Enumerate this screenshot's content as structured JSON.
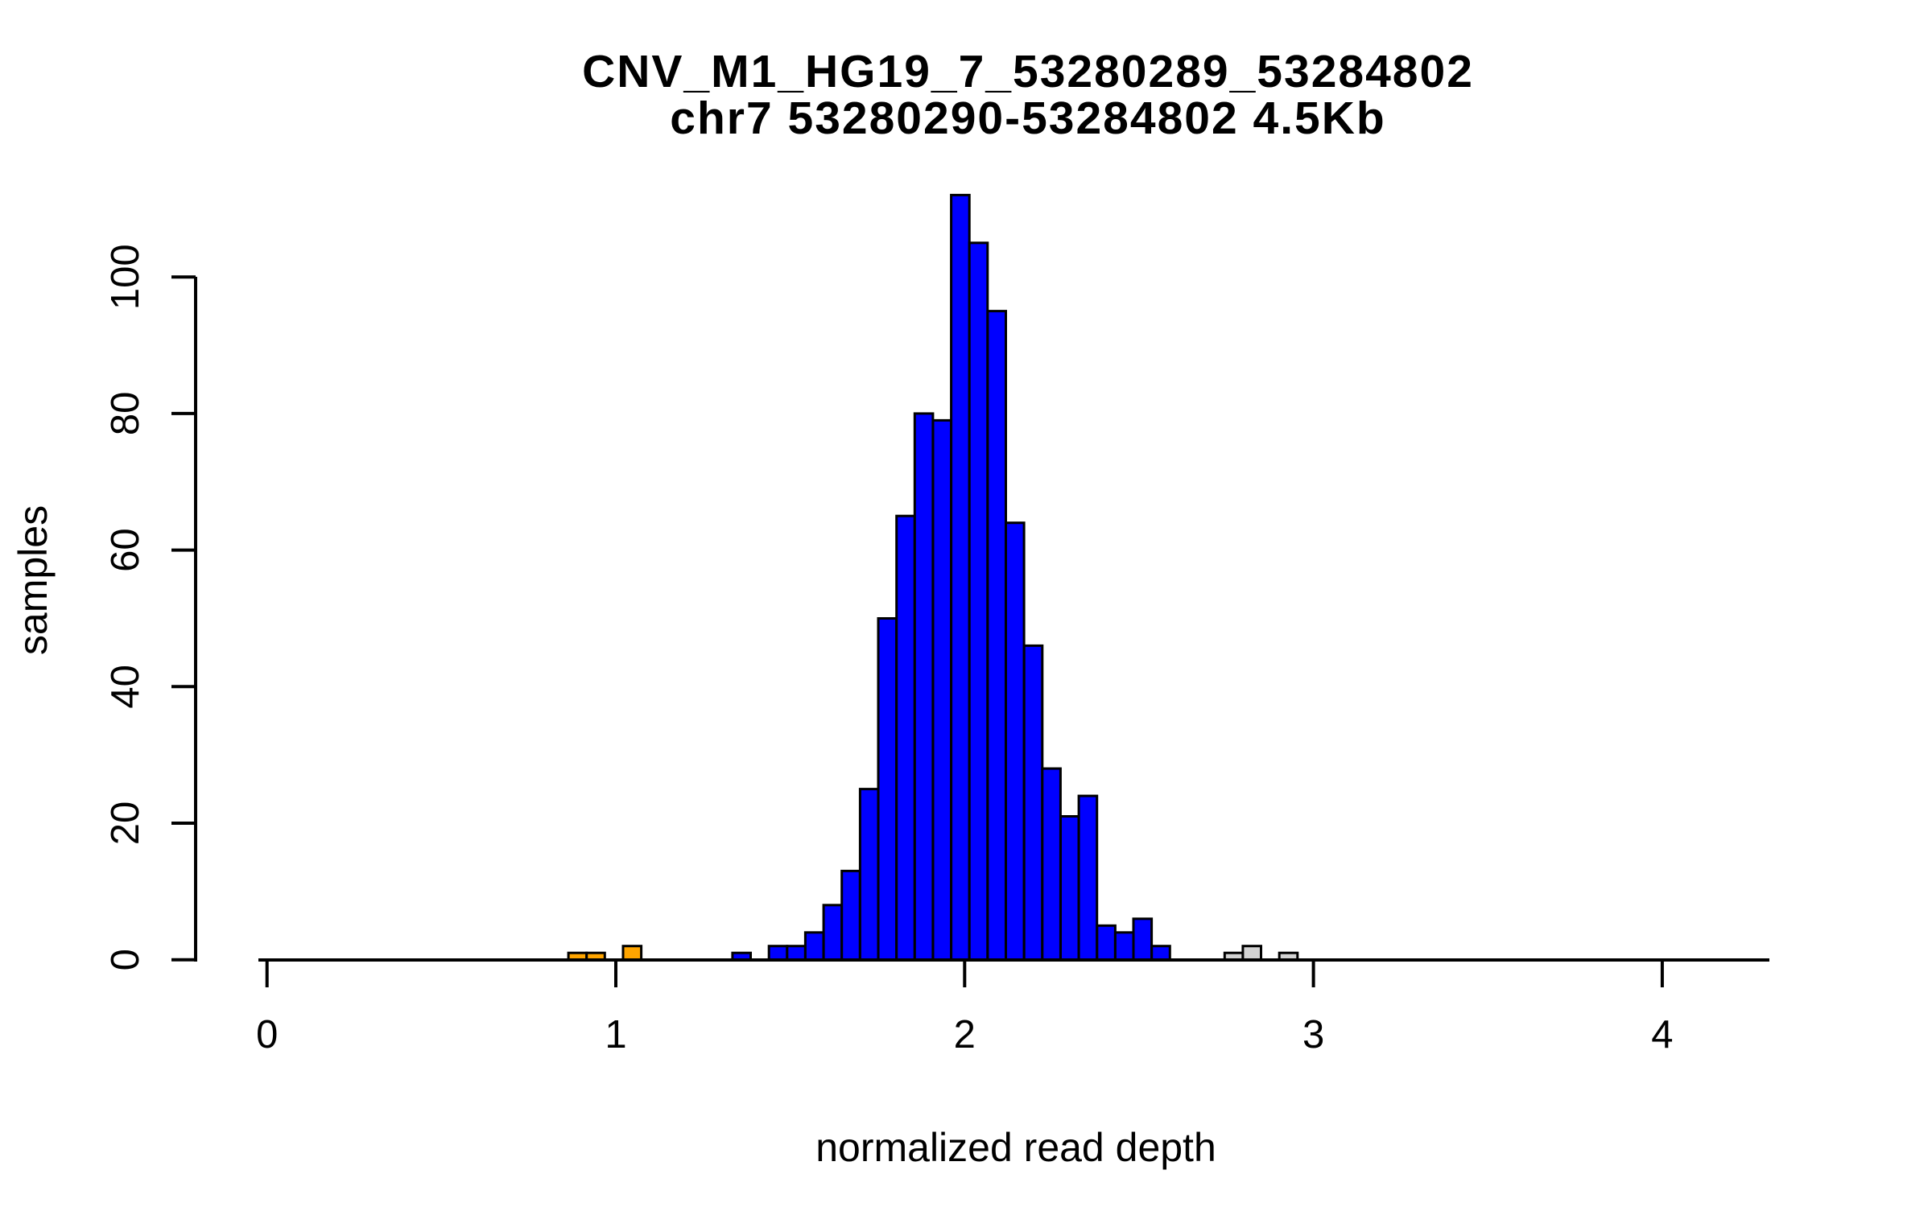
{
  "title": {
    "line1": "CNV_M1_HG19_7_53280289_53284802",
    "line2": "chr7 53280290-53284802 4.5Kb"
  },
  "axes": {
    "x": {
      "label": "normalized read depth",
      "tick_values": [
        0,
        1,
        2,
        3,
        4
      ],
      "tick_labels": [
        "0",
        "1",
        "2",
        "3",
        "4"
      ]
    },
    "y": {
      "label": "samples",
      "tick_values": [
        0,
        20,
        40,
        60,
        80,
        100
      ],
      "tick_labels": [
        "0",
        "20",
        "40",
        "60",
        "80",
        "100"
      ]
    }
  },
  "colors": {
    "blue": "#0000FF",
    "orange": "#FFA500",
    "gray": "#D3D3D3",
    "stroke": "#000000",
    "background": "#FFFFFF"
  },
  "chart_data": {
    "type": "bar",
    "subtype": "histogram",
    "title": "CNV_M1_HG19_7_53280289_53284802",
    "subtitle": "chr7 53280290-53284802 4.5Kb",
    "xlabel": "normalized read depth",
    "ylabel": "samples",
    "xlim": [
      -0.02,
      4.31
    ],
    "ylim": [
      0,
      112
    ],
    "grid": false,
    "legend": false,
    "bin_start": 0.864,
    "bin_width": 0.05226,
    "counts": [
      1,
      1,
      0,
      2,
      0,
      0,
      0,
      0,
      0,
      1,
      0,
      2,
      2,
      4,
      8,
      13,
      25,
      50,
      65,
      80,
      79,
      112,
      105,
      95,
      64,
      46,
      28,
      21,
      24,
      5,
      4,
      6,
      2,
      0,
      0,
      0,
      1,
      2,
      0,
      1
    ],
    "bar_colors": [
      "orange",
      "orange",
      null,
      "orange",
      null,
      null,
      null,
      null,
      null,
      "blue",
      null,
      "blue",
      "blue",
      "blue",
      "blue",
      "blue",
      "blue",
      "blue",
      "blue",
      "blue",
      "blue",
      "blue",
      "blue",
      "blue",
      "blue",
      "blue",
      "blue",
      "blue",
      "blue",
      "blue",
      "blue",
      "blue",
      "blue",
      null,
      null,
      null,
      "gray",
      "gray",
      null,
      "gray"
    ]
  }
}
